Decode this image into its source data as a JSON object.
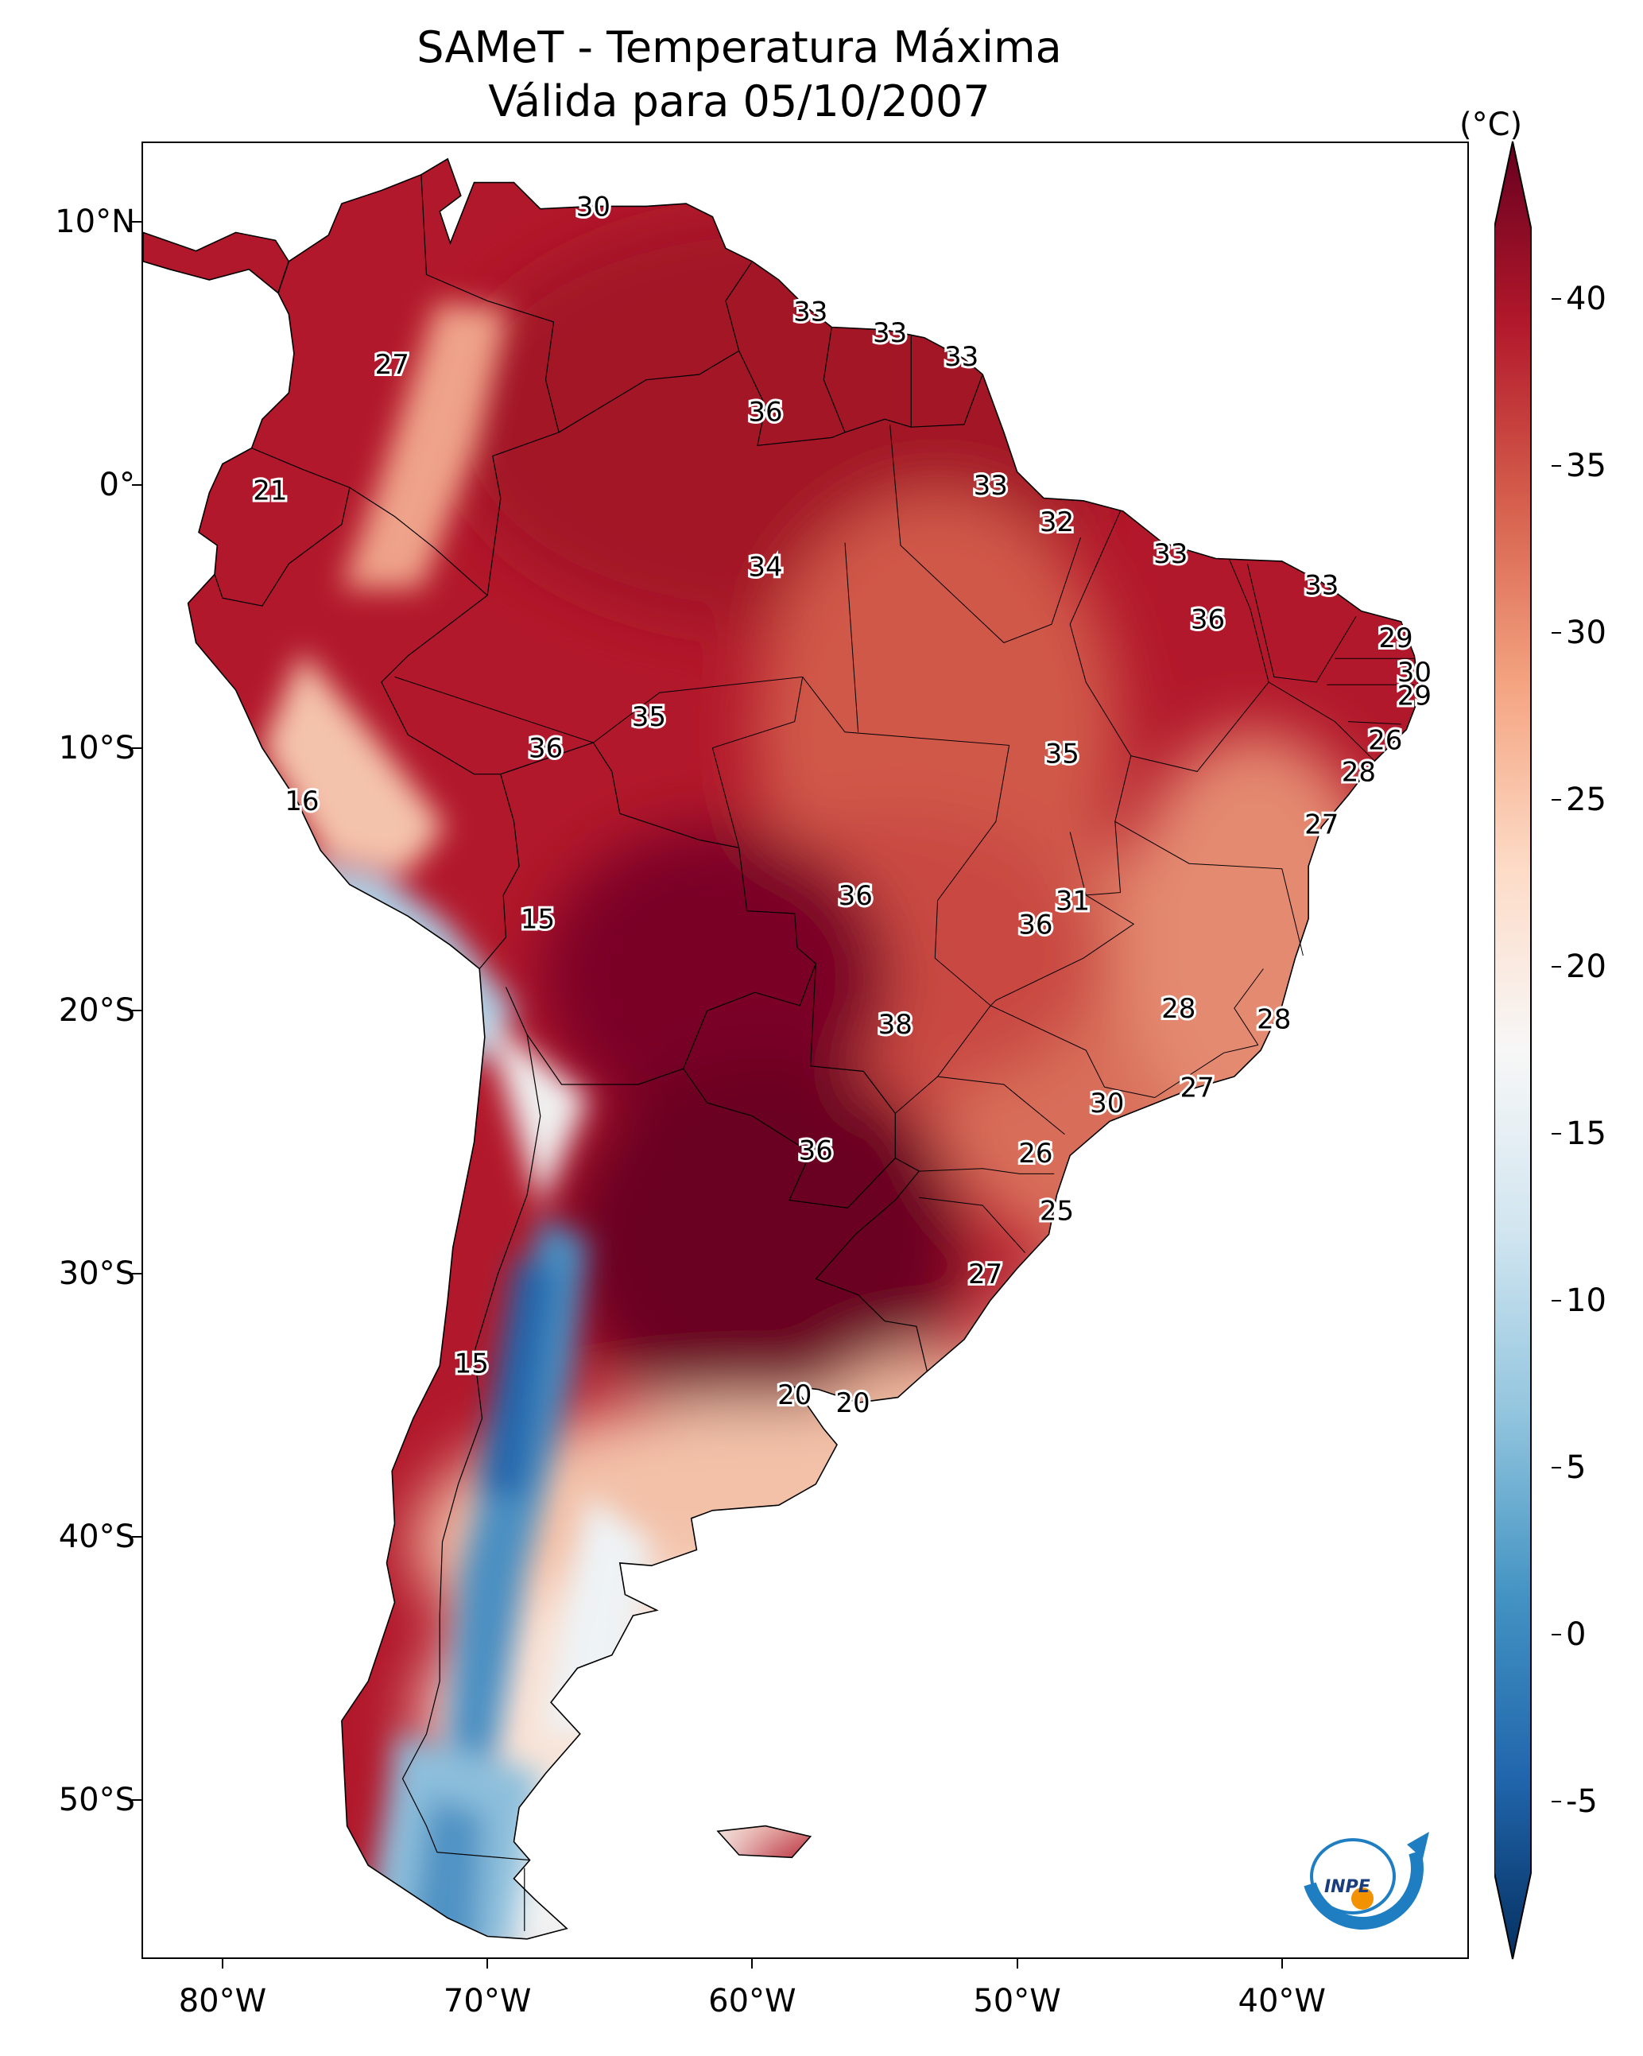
{
  "title": {
    "line1": "SAMeT - Temperatura Máxima",
    "line2": "Válida para 05/10/2007"
  },
  "axes": {
    "lon_range": [
      -83,
      -33
    ],
    "lat_range": [
      -56,
      13
    ],
    "x_ticks": [
      {
        "lon": -80,
        "label": "80°W"
      },
      {
        "lon": -70,
        "label": "70°W"
      },
      {
        "lon": -60,
        "label": "60°W"
      },
      {
        "lon": -50,
        "label": "50°W"
      },
      {
        "lon": -40,
        "label": "40°W"
      }
    ],
    "y_ticks": [
      {
        "lat": 10,
        "label": "10°N"
      },
      {
        "lat": 0,
        "label": "0°"
      },
      {
        "lat": -10,
        "label": "10°S"
      },
      {
        "lat": -20,
        "label": "20°S"
      },
      {
        "lat": -30,
        "label": "30°S"
      },
      {
        "lat": -40,
        "label": "40°S"
      },
      {
        "lat": -50,
        "label": "50°S"
      }
    ]
  },
  "colorbar": {
    "unit": "(°C)",
    "range": [
      -5,
      40
    ],
    "colormap": "RdBu_r",
    "extend": "both",
    "ticks": [
      {
        "value": 40,
        "label": "40"
      },
      {
        "value": 35,
        "label": "35"
      },
      {
        "value": 30,
        "label": "30"
      },
      {
        "value": 25,
        "label": "25"
      },
      {
        "value": 20,
        "label": "20"
      },
      {
        "value": 15,
        "label": "15"
      },
      {
        "value": 10,
        "label": "10"
      },
      {
        "value": 5,
        "label": "5"
      },
      {
        "value": 0,
        "label": "0"
      },
      {
        "value": -5,
        "label": "-5"
      }
    ],
    "colors": [
      "#053061",
      "#2166ac",
      "#4393c3",
      "#92c5de",
      "#d1e5f0",
      "#f7f7f7",
      "#fddbc7",
      "#f4a582",
      "#d6604d",
      "#b2182b",
      "#67001f"
    ]
  },
  "station_labels": [
    {
      "lon": -66.0,
      "lat": 10.6,
      "text": "30"
    },
    {
      "lon": -57.8,
      "lat": 6.6,
      "text": "33"
    },
    {
      "lon": -54.8,
      "lat": 5.8,
      "text": "33"
    },
    {
      "lon": -52.1,
      "lat": 4.9,
      "text": "33"
    },
    {
      "lon": -73.6,
      "lat": 4.6,
      "text": "27"
    },
    {
      "lon": -59.5,
      "lat": 2.8,
      "text": "36"
    },
    {
      "lon": -78.2,
      "lat": -0.2,
      "text": "21"
    },
    {
      "lon": -51.0,
      "lat": 0.0,
      "text": "33"
    },
    {
      "lon": -48.5,
      "lat": -1.4,
      "text": "32"
    },
    {
      "lon": -59.5,
      "lat": -3.1,
      "text": "34"
    },
    {
      "lon": -44.2,
      "lat": -2.6,
      "text": "33"
    },
    {
      "lon": -38.5,
      "lat": -3.8,
      "text": "33"
    },
    {
      "lon": -42.8,
      "lat": -5.1,
      "text": "36"
    },
    {
      "lon": -35.7,
      "lat": -5.8,
      "text": "29"
    },
    {
      "lon": -35.0,
      "lat": -7.1,
      "text": "30"
    },
    {
      "lon": -35.0,
      "lat": -8.0,
      "text": "29"
    },
    {
      "lon": -63.9,
      "lat": -8.8,
      "text": "35"
    },
    {
      "lon": -67.8,
      "lat": -10.0,
      "text": "36"
    },
    {
      "lon": -48.3,
      "lat": -10.2,
      "text": "35"
    },
    {
      "lon": -36.1,
      "lat": -9.7,
      "text": "26"
    },
    {
      "lon": -37.1,
      "lat": -10.9,
      "text": "28"
    },
    {
      "lon": -77.0,
      "lat": -12.0,
      "text": "16"
    },
    {
      "lon": -38.5,
      "lat": -12.9,
      "text": "27"
    },
    {
      "lon": -56.1,
      "lat": -15.6,
      "text": "36"
    },
    {
      "lon": -47.9,
      "lat": -15.8,
      "text": "31"
    },
    {
      "lon": -49.3,
      "lat": -16.7,
      "text": "36"
    },
    {
      "lon": -68.1,
      "lat": -16.5,
      "text": "15"
    },
    {
      "lon": -43.9,
      "lat": -19.9,
      "text": "28"
    },
    {
      "lon": -54.6,
      "lat": -20.5,
      "text": "38"
    },
    {
      "lon": -40.3,
      "lat": -20.3,
      "text": "28"
    },
    {
      "lon": -43.2,
      "lat": -22.9,
      "text": "27"
    },
    {
      "lon": -46.6,
      "lat": -23.5,
      "text": "30"
    },
    {
      "lon": -57.6,
      "lat": -25.3,
      "text": "36"
    },
    {
      "lon": -49.3,
      "lat": -25.4,
      "text": "26"
    },
    {
      "lon": -48.5,
      "lat": -27.6,
      "text": "25"
    },
    {
      "lon": -51.2,
      "lat": -30.0,
      "text": "27"
    },
    {
      "lon": -70.6,
      "lat": -33.4,
      "text": "15"
    },
    {
      "lon": -58.4,
      "lat": -34.6,
      "text": "20"
    },
    {
      "lon": -56.2,
      "lat": -34.9,
      "text": "20"
    }
  ],
  "logo": {
    "text": "INPE"
  }
}
